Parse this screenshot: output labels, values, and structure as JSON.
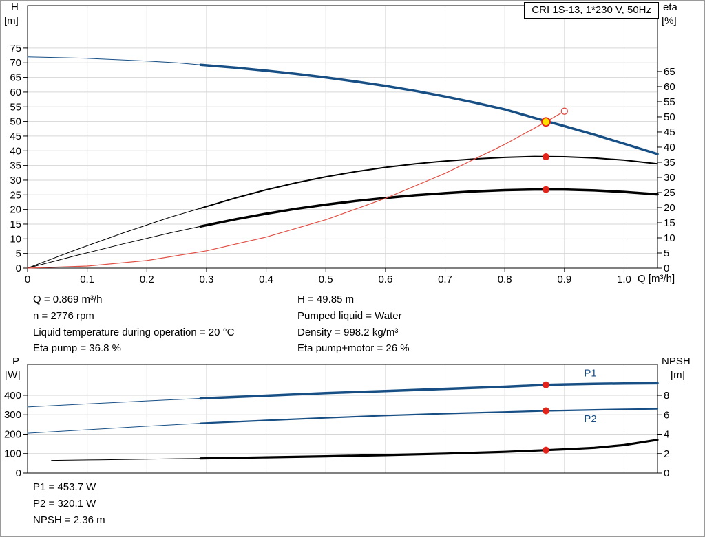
{
  "title_box": "CRI 1S-13, 1*230 V, 50Hz",
  "colors": {
    "blue": "#174F85",
    "black": "#000000",
    "red": "#E32219",
    "red_light": "#E05045",
    "yellow": "#FFE200",
    "white": "#FFFFFF",
    "grid": "#D6D6D6"
  },
  "annotations": {
    "left_column": [
      "Q = 0.869 m³/h",
      "n = 2776 rpm",
      "Liquid temperature during operation = 20 °C",
      "Eta pump = 36.8 %"
    ],
    "right_column": [
      "H = 49.85 m",
      "Pumped liquid = Water",
      "Density = 998.2 kg/m³",
      "Eta pump+motor = 26 %"
    ],
    "bottom": [
      "P1 = 453.7 W",
      "P2 = 320.1 W",
      "NPSH = 2.36 m"
    ]
  },
  "chart_data": [
    {
      "type": "line",
      "name": "qh-eta-chart",
      "x": {
        "label": "Q [m³/h]",
        "range": [
          0,
          1.056
        ],
        "ticks": [
          0,
          0.1,
          0.2,
          0.3,
          0.4,
          0.5,
          0.6,
          0.7,
          0.8,
          0.9,
          1.0
        ],
        "tick_labels": [
          "0",
          "0.1",
          "0.2",
          "0.3",
          "0.4",
          "0.5",
          "0.6",
          "0.7",
          "0.8",
          "0.9",
          "1.0"
        ]
      },
      "y_left": {
        "label": "H",
        "unit": "[m]",
        "range": [
          0,
          89.5
        ],
        "ticks": [
          0,
          5,
          10,
          15,
          20,
          25,
          30,
          35,
          40,
          45,
          50,
          55,
          60,
          65,
          70,
          75
        ],
        "tick_labels": [
          "0",
          "5",
          "10",
          "15",
          "20",
          "25",
          "30",
          "35",
          "40",
          "45",
          "50",
          "55",
          "60",
          "65",
          "70",
          "75"
        ]
      },
      "y_right": {
        "label": "eta",
        "unit": "[%]",
        "range": [
          0,
          86.8
        ],
        "ticks": [
          0,
          5,
          10,
          15,
          20,
          25,
          30,
          35,
          40,
          45,
          50,
          55,
          60,
          65
        ],
        "tick_labels": [
          "0",
          "5",
          "10",
          "15",
          "20",
          "25",
          "30",
          "35",
          "40",
          "45",
          "50",
          "55",
          "60",
          "65"
        ]
      },
      "series": [
        {
          "name": "head-curve-extrapolated",
          "axis": "left",
          "color": "blue",
          "width": 1,
          "points": [
            [
              0,
              72
            ],
            [
              0.1,
              71.5
            ],
            [
              0.2,
              70.6
            ],
            [
              0.25,
              70
            ],
            [
              0.29,
              69.3
            ]
          ]
        },
        {
          "name": "head-curve",
          "axis": "left",
          "color": "blue",
          "width": 3.5,
          "points": [
            [
              0.29,
              69.3
            ],
            [
              0.35,
              68.3
            ],
            [
              0.4,
              67.3
            ],
            [
              0.45,
              66.2
            ],
            [
              0.5,
              65
            ],
            [
              0.55,
              63.6
            ],
            [
              0.6,
              62.1
            ],
            [
              0.65,
              60.4
            ],
            [
              0.7,
              58.5
            ],
            [
              0.75,
              56.4
            ],
            [
              0.8,
              54.1
            ],
            [
              0.85,
              51.2
            ],
            [
              0.9,
              48.4
            ],
            [
              0.95,
              45.5
            ],
            [
              1,
              42.4
            ],
            [
              1.056,
              38.9
            ]
          ]
        },
        {
          "name": "eta-pump-curve-extrapolated",
          "axis": "right",
          "color": "black",
          "width": 1,
          "points": [
            [
              0,
              0
            ],
            [
              0.08,
              6
            ],
            [
              0.16,
              11.6
            ],
            [
              0.24,
              16.9
            ],
            [
              0.29,
              19.8
            ]
          ]
        },
        {
          "name": "eta-pump-curve",
          "axis": "right",
          "color": "black",
          "width": 2,
          "points": [
            [
              0.29,
              19.8
            ],
            [
              0.35,
              23.3
            ],
            [
              0.4,
              25.9
            ],
            [
              0.45,
              28.2
            ],
            [
              0.5,
              30.2
            ],
            [
              0.55,
              31.9
            ],
            [
              0.6,
              33.3
            ],
            [
              0.65,
              34.5
            ],
            [
              0.7,
              35.4
            ],
            [
              0.75,
              36.1
            ],
            [
              0.8,
              36.6
            ],
            [
              0.85,
              36.9
            ],
            [
              0.9,
              36.8
            ],
            [
              0.95,
              36.4
            ],
            [
              1,
              35.7
            ],
            [
              1.056,
              34.5
            ]
          ]
        },
        {
          "name": "eta-pump-motor-curve-extrapolated",
          "axis": "right",
          "color": "black",
          "width": 1,
          "points": [
            [
              0,
              0
            ],
            [
              0.08,
              4.1
            ],
            [
              0.16,
              8
            ],
            [
              0.24,
              11.7
            ],
            [
              0.29,
              13.8
            ]
          ]
        },
        {
          "name": "eta-pump-motor-curve",
          "axis": "right",
          "color": "black",
          "width": 3.5,
          "points": [
            [
              0.29,
              13.8
            ],
            [
              0.35,
              16.2
            ],
            [
              0.4,
              18
            ],
            [
              0.45,
              19.6
            ],
            [
              0.5,
              21
            ],
            [
              0.55,
              22.2
            ],
            [
              0.6,
              23.2
            ],
            [
              0.65,
              24.1
            ],
            [
              0.7,
              24.8
            ],
            [
              0.75,
              25.4
            ],
            [
              0.8,
              25.8
            ],
            [
              0.85,
              26
            ],
            [
              0.9,
              26
            ],
            [
              0.95,
              25.7
            ],
            [
              1,
              25.2
            ],
            [
              1.056,
              24.4
            ]
          ]
        },
        {
          "name": "system-curve",
          "axis": "left",
          "color": "red_light",
          "width": 1.2,
          "points": [
            [
              0,
              0
            ],
            [
              0.1,
              0.7
            ],
            [
              0.2,
              2.6
            ],
            [
              0.3,
              5.9
            ],
            [
              0.4,
              10.6
            ],
            [
              0.5,
              16.5
            ],
            [
              0.6,
              23.8
            ],
            [
              0.7,
              32.3
            ],
            [
              0.8,
              42.2
            ],
            [
              0.869,
              49.85
            ],
            [
              0.9,
              53.5
            ]
          ]
        }
      ],
      "markers": [
        {
          "name": "system-curve-end-marker",
          "axis": "left",
          "x": 0.9,
          "v": 53.5,
          "r": 4.5,
          "fill": "white",
          "stroke": "red_light",
          "sw": 1.4
        },
        {
          "name": "duty-point-marker",
          "axis": "left",
          "x": 0.869,
          "v": 49.85,
          "r": 6,
          "fill": "yellow",
          "stroke": "red",
          "sw": 1.8
        },
        {
          "name": "eta-pump-marker",
          "axis": "right",
          "x": 0.869,
          "v": 36.8,
          "r": 5,
          "fill": "red",
          "stroke": "none",
          "sw": 0
        },
        {
          "name": "eta-pump-motor-marker",
          "axis": "right",
          "x": 0.869,
          "v": 26,
          "r": 5,
          "fill": "red",
          "stroke": "none",
          "sw": 0
        }
      ]
    },
    {
      "type": "line",
      "name": "power-npsh-chart",
      "x": {
        "label": "",
        "range": [
          0,
          1.056
        ],
        "ticks": [
          0,
          0.1,
          0.2,
          0.3,
          0.4,
          0.5,
          0.6,
          0.7,
          0.8,
          0.9,
          1.0
        ]
      },
      "y_left": {
        "label": "P",
        "unit": "[W]",
        "range": [
          0,
          559
        ],
        "ticks": [
          0,
          100,
          200,
          300,
          400
        ],
        "tick_labels": [
          "0",
          "100",
          "200",
          "300",
          "400"
        ]
      },
      "y_right": {
        "label": "NPSH",
        "unit": "[m]",
        "range": [
          0,
          11.19
        ],
        "ticks": [
          0,
          2,
          4,
          6,
          8
        ],
        "tick_labels": [
          "0",
          "2",
          "4",
          "6",
          "8"
        ]
      },
      "series": [
        {
          "name": "p1-curve-extrapolated",
          "axis": "left",
          "color": "blue",
          "width": 1,
          "points": [
            [
              0,
              340
            ],
            [
              0.1,
              356
            ],
            [
              0.2,
              371
            ],
            [
              0.29,
              384
            ]
          ]
        },
        {
          "name": "p1-curve",
          "axis": "left",
          "color": "blue",
          "width": 3.5,
          "points": [
            [
              0.29,
              384
            ],
            [
              0.4,
              398
            ],
            [
              0.5,
              411
            ],
            [
              0.6,
              422
            ],
            [
              0.7,
              433
            ],
            [
              0.8,
              444
            ],
            [
              0.869,
              453.7
            ],
            [
              0.9,
              456
            ],
            [
              0.95,
              459
            ],
            [
              1,
              461
            ],
            [
              1.056,
              462
            ]
          ]
        },
        {
          "name": "p2-curve-extrapolated",
          "axis": "left",
          "color": "blue",
          "width": 1,
          "points": [
            [
              0,
              205
            ],
            [
              0.1,
              223
            ],
            [
              0.2,
              241
            ],
            [
              0.29,
              256
            ]
          ]
        },
        {
          "name": "p2-curve",
          "axis": "left",
          "color": "blue",
          "width": 2.2,
          "points": [
            [
              0.29,
              256
            ],
            [
              0.4,
              271
            ],
            [
              0.5,
              284
            ],
            [
              0.6,
              296
            ],
            [
              0.7,
              306
            ],
            [
              0.8,
              314
            ],
            [
              0.869,
              320.1
            ],
            [
              0.9,
              322
            ],
            [
              0.95,
              325
            ],
            [
              1,
              328
            ],
            [
              1.056,
              330
            ]
          ]
        },
        {
          "name": "npsh-curve-extrapolated",
          "axis": "right",
          "color": "black",
          "width": 1,
          "points": [
            [
              0.04,
              1.3
            ],
            [
              0.12,
              1.37
            ],
            [
              0.2,
              1.44
            ],
            [
              0.29,
              1.51
            ]
          ]
        },
        {
          "name": "npsh-curve",
          "axis": "right",
          "color": "black",
          "width": 3.2,
          "points": [
            [
              0.29,
              1.51
            ],
            [
              0.4,
              1.62
            ],
            [
              0.5,
              1.73
            ],
            [
              0.6,
              1.85
            ],
            [
              0.7,
              2
            ],
            [
              0.8,
              2.18
            ],
            [
              0.869,
              2.36
            ],
            [
              0.9,
              2.44
            ],
            [
              0.95,
              2.6
            ],
            [
              1,
              2.88
            ],
            [
              1.056,
              3.42
            ]
          ]
        }
      ],
      "curve_labels": [
        {
          "name": "p1-curve-label",
          "text": "P1",
          "axis": "left",
          "x": 0.933,
          "v": 497,
          "color": "blue"
        },
        {
          "name": "p2-curve-label",
          "text": "P2",
          "axis": "left",
          "x": 0.933,
          "v": 262,
          "color": "blue"
        }
      ],
      "markers": [
        {
          "name": "p1-duty-marker",
          "axis": "left",
          "x": 0.869,
          "v": 453.7,
          "r": 5,
          "fill": "red",
          "stroke": "none",
          "sw": 0
        },
        {
          "name": "p2-duty-marker",
          "axis": "left",
          "x": 0.869,
          "v": 320.1,
          "r": 5,
          "fill": "red",
          "stroke": "none",
          "sw": 0
        },
        {
          "name": "npsh-duty-marker",
          "axis": "right",
          "x": 0.869,
          "v": 2.36,
          "r": 5,
          "fill": "red",
          "stroke": "none",
          "sw": 0
        }
      ]
    }
  ]
}
